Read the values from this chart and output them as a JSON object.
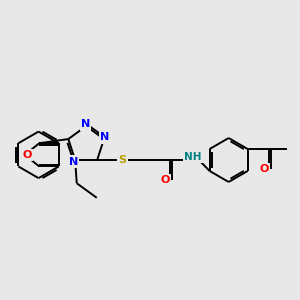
{
  "background_color": "#e8e8e8",
  "bond_color": "#000000",
  "atom_colors": {
    "N": "#0000ff",
    "O": "#ff0000",
    "S": "#b8a000",
    "H": "#008080",
    "C": "#000000"
  }
}
